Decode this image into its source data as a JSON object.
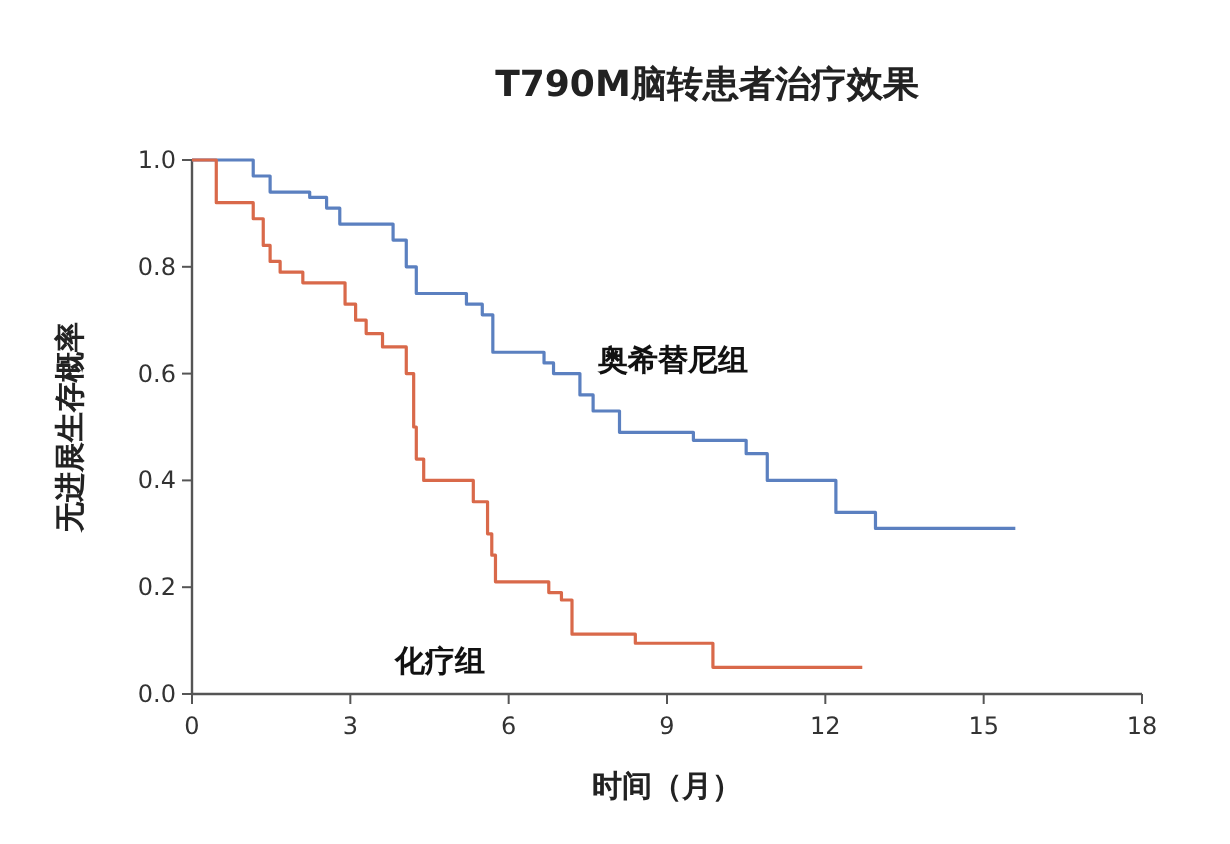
{
  "chart_data": {
    "type": "step",
    "title": "T790M脑转患者治疗效果",
    "xlabel": "时间（月）",
    "ylabel": "无进展生存概率",
    "xlim": [
      0,
      18
    ],
    "xticks": [
      0,
      3,
      6,
      9,
      12,
      15,
      18
    ],
    "ylim": [
      0,
      1
    ],
    "yticks": [
      {
        "value": 0,
        "label": "0.0"
      },
      {
        "value": 0.2,
        "label": "0.2"
      },
      {
        "value": 0.4,
        "label": "0.4"
      },
      {
        "value": 0.6,
        "label": "0.6"
      },
      {
        "value": 0.8,
        "label": "0.8"
      },
      {
        "value": 1,
        "label": "1.0"
      }
    ],
    "grid": false,
    "legend": false,
    "marker": "none",
    "line_style": "solid",
    "series": [
      {
        "name": "奥希替尼组",
        "color": "#5b80c0",
        "x": [
          0,
          1.16,
          1.48,
          2.23,
          2.55,
          2.8,
          3.81,
          4.06,
          4.25,
          5.2,
          5.5,
          5.7,
          6.67,
          6.85,
          7.35,
          7.6,
          8.1,
          9.5,
          10.5,
          10.9,
          12.2,
          12.95,
          15.6
        ],
        "values": [
          1.0,
          0.97,
          0.94,
          0.93,
          0.91,
          0.88,
          0.85,
          0.8,
          0.75,
          0.73,
          0.71,
          0.64,
          0.62,
          0.6,
          0.56,
          0.53,
          0.49,
          0.475,
          0.45,
          0.4,
          0.34,
          0.31,
          0.31
        ]
      },
      {
        "name": "化疗组",
        "color": "#d9694a",
        "x": [
          0,
          0.46,
          1.16,
          1.35,
          1.48,
          1.67,
          2.1,
          2.9,
          3.1,
          3.3,
          3.61,
          4.06,
          4.2,
          4.25,
          4.39,
          5.33,
          5.6,
          5.68,
          5.75,
          6.76,
          7.0,
          7.2,
          8.4,
          9.7,
          9.87,
          12.7
        ],
        "values": [
          1.0,
          0.92,
          0.89,
          0.84,
          0.81,
          0.79,
          0.77,
          0.73,
          0.7,
          0.675,
          0.65,
          0.6,
          0.5,
          0.44,
          0.4,
          0.36,
          0.3,
          0.26,
          0.21,
          0.19,
          0.176,
          0.112,
          0.095,
          0.095,
          0.05,
          0.05
        ]
      }
    ]
  }
}
